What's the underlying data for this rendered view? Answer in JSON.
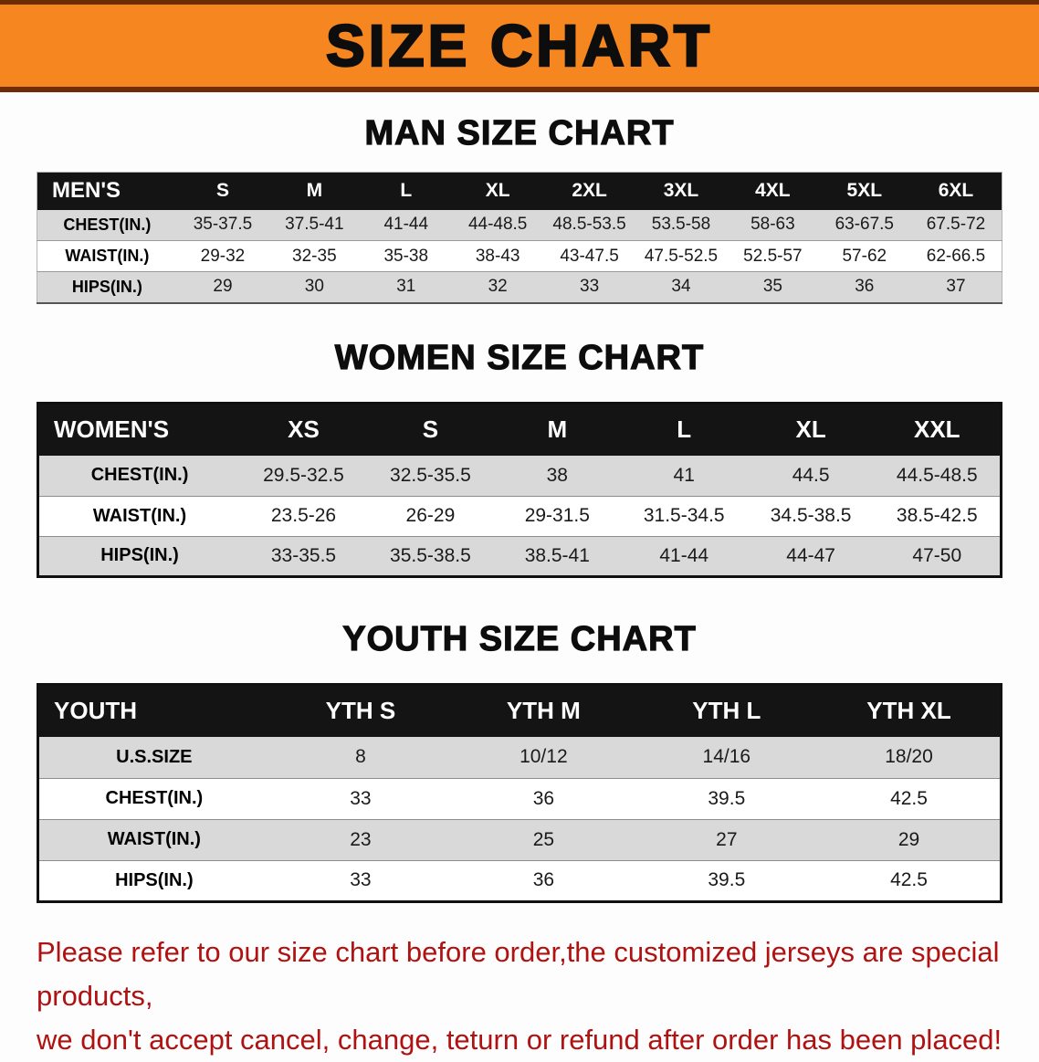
{
  "banner": {
    "title": "SIZE CHART",
    "bg_color": "#f6861f",
    "border_color": "#6e2c05"
  },
  "sections": [
    {
      "heading": "MAN SIZE CHART",
      "table": {
        "header": [
          "MEN'S",
          "S",
          "M",
          "L",
          "XL",
          "2XL",
          "3XL",
          "4XL",
          "5XL",
          "6XL"
        ],
        "rows": [
          {
            "label": "CHEST(IN.)",
            "values": [
              "35-37.5",
              "37.5-41",
              "41-44",
              "44-48.5",
              "48.5-53.5",
              "53.5-58",
              "58-63",
              "63-67.5",
              "67.5-72"
            ]
          },
          {
            "label": "WAIST(IN.)",
            "values": [
              "29-32",
              "32-35",
              "35-38",
              "38-43",
              "43-47.5",
              "47.5-52.5",
              "52.5-57",
              "57-62",
              "62-66.5"
            ]
          },
          {
            "label": "HIPS(IN.)",
            "values": [
              "29",
              "30",
              "31",
              "32",
              "33",
              "34",
              "35",
              "36",
              "37"
            ]
          }
        ]
      }
    },
    {
      "heading": "WOMEN SIZE CHART",
      "table": {
        "header": [
          "WOMEN'S",
          "XS",
          "S",
          "M",
          "L",
          "XL",
          "XXL"
        ],
        "rows": [
          {
            "label": "CHEST(IN.)",
            "values": [
              "29.5-32.5",
              "32.5-35.5",
              "38",
              "41",
              "44.5",
              "44.5-48.5"
            ]
          },
          {
            "label": "WAIST(IN.)",
            "values": [
              "23.5-26",
              "26-29",
              "29-31.5",
              "31.5-34.5",
              "34.5-38.5",
              "38.5-42.5"
            ]
          },
          {
            "label": "HIPS(IN.)",
            "values": [
              "33-35.5",
              "35.5-38.5",
              "38.5-41",
              "41-44",
              "44-47",
              "47-50"
            ]
          }
        ]
      }
    },
    {
      "heading": "YOUTH SIZE CHART",
      "table": {
        "header": [
          "YOUTH",
          "YTH S",
          "YTH M",
          "YTH L",
          "YTH XL"
        ],
        "rows": [
          {
            "label": "U.S.SIZE",
            "values": [
              "8",
              "10/12",
              "14/16",
              "18/20"
            ]
          },
          {
            "label": "CHEST(IN.)",
            "values": [
              "33",
              "36",
              "39.5",
              "42.5"
            ]
          },
          {
            "label": "WAIST(IN.)",
            "values": [
              "23",
              "25",
              "27",
              "29"
            ]
          },
          {
            "label": "HIPS(IN.)",
            "values": [
              "33",
              "36",
              "39.5",
              "42.5"
            ]
          }
        ]
      }
    }
  ],
  "footer": {
    "line1": "Please refer to our size chart before order,the customized jerseys are special products,",
    "line2": "we don't accept cancel, change, teturn or refund after order has been placed!"
  }
}
